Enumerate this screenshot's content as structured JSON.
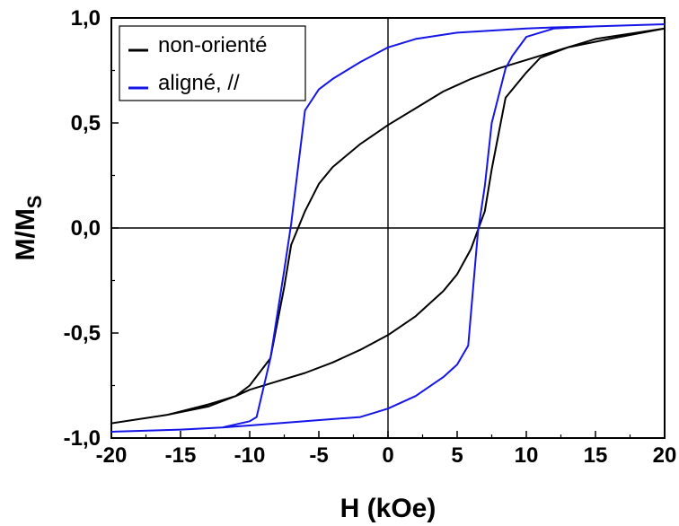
{
  "chart_data": {
    "type": "line",
    "xlabel": "H (kOe)",
    "ylabel": {
      "main": "M/M",
      "sub": "S"
    },
    "xlim": [
      -20,
      20
    ],
    "ylim": [
      -1,
      1
    ],
    "x_ticks": [
      -20,
      -15,
      -10,
      -5,
      0,
      5,
      10,
      15,
      20
    ],
    "x_tick_labels": [
      "-20",
      "-15",
      "-10",
      "-5",
      "0",
      "5",
      "10",
      "15",
      "20"
    ],
    "y_ticks": [
      -1,
      -0.5,
      0,
      0.5,
      1
    ],
    "y_tick_labels": [
      "-1,0",
      "-0,5",
      "0,0",
      "0,5",
      "1,0"
    ],
    "zero_lines": true,
    "grid": false,
    "legend_position": "top-left",
    "series": [
      {
        "name": "non-orienté",
        "color": "#000000",
        "x": [
          20,
          15,
          12,
          10,
          8,
          6,
          4,
          2,
          0,
          -2,
          -4,
          -5,
          -6,
          -6.5,
          -7,
          -7.5,
          -8.5,
          -10,
          -11,
          -13,
          -16,
          -20,
          -16,
          -13,
          -11,
          -10,
          -8,
          -6,
          -4,
          -2,
          0,
          2,
          4,
          5,
          6,
          6.5,
          7,
          7.5,
          8.5,
          10,
          11,
          13,
          16,
          20
        ],
        "y": [
          0.95,
          0.9,
          0.84,
          0.8,
          0.76,
          0.71,
          0.65,
          0.57,
          0.49,
          0.4,
          0.29,
          0.21,
          0.08,
          0.0,
          -0.08,
          -0.28,
          -0.62,
          -0.75,
          -0.8,
          -0.85,
          -0.89,
          -0.93,
          -0.89,
          -0.84,
          -0.8,
          -0.77,
          -0.73,
          -0.69,
          -0.64,
          -0.58,
          -0.51,
          -0.42,
          -0.3,
          -0.22,
          -0.1,
          -0.01,
          0.08,
          0.28,
          0.62,
          0.74,
          0.81,
          0.86,
          0.9,
          0.95
        ]
      },
      {
        "name": "aligné, //",
        "color": "#1515e8",
        "x": [
          20,
          15,
          12,
          10,
          5,
          2,
          0,
          -2,
          -4,
          -5,
          -6,
          -7,
          -7.5,
          -8.5,
          -9.5,
          -10,
          -12,
          -15,
          -20,
          -15,
          -12,
          -10,
          -6,
          -4,
          -2,
          -1,
          0,
          2,
          4,
          5,
          5.8,
          6.5,
          7,
          7.5,
          8.5,
          9,
          10,
          12,
          15,
          20
        ],
        "y": [
          0.97,
          0.96,
          0.955,
          0.95,
          0.93,
          0.9,
          0.86,
          0.79,
          0.71,
          0.66,
          0.56,
          0.02,
          -0.2,
          -0.62,
          -0.9,
          -0.92,
          -0.95,
          -0.96,
          -0.97,
          -0.96,
          -0.95,
          -0.94,
          -0.92,
          -0.91,
          -0.9,
          -0.88,
          -0.86,
          -0.8,
          -0.71,
          -0.65,
          -0.56,
          -0.02,
          0.2,
          0.5,
          0.76,
          0.82,
          0.91,
          0.95,
          0.96,
          0.97
        ]
      }
    ]
  }
}
